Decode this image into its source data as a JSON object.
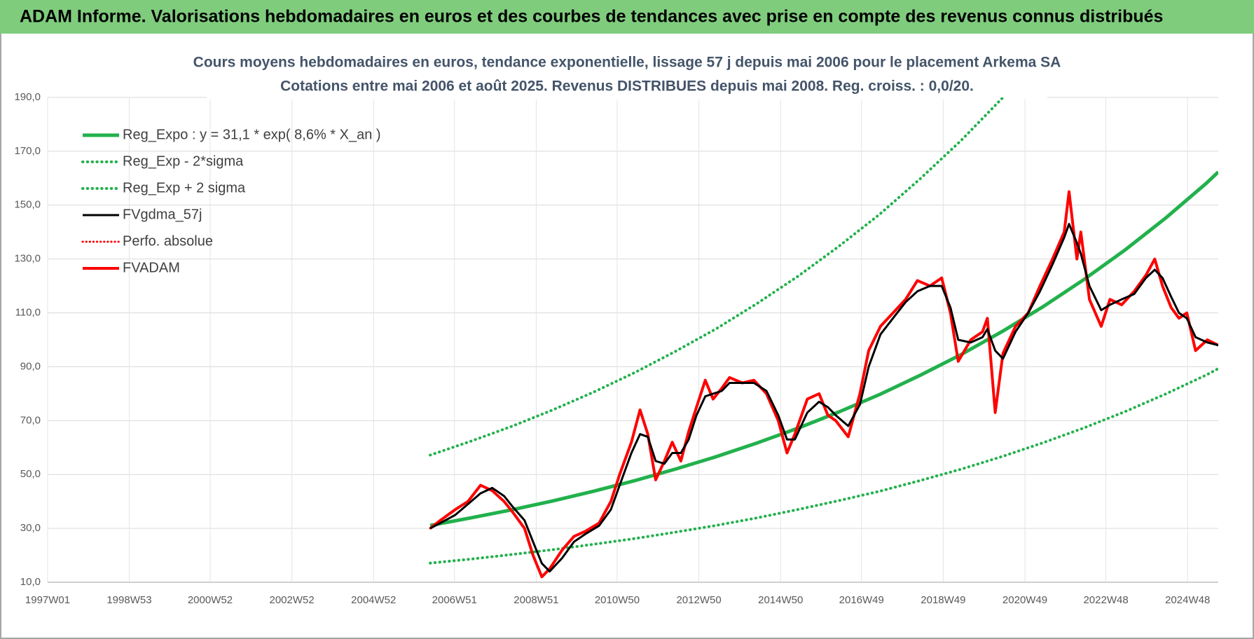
{
  "header": {
    "title": "ADAM Informe. Valorisations hebdomadaires en euros et des courbes de tendances avec prise en compte des revenus connus distribués"
  },
  "chart_data": {
    "type": "line",
    "title": "Cours moyens hebdomadaires en euros, tendance exponentielle, lissage 57 j depuis mai 2006 pour le placement Arkema SA",
    "subtitle": "Cotations entre mai 2006 et août 2025.  Revenus DISTRIBUES depuis mai 2008. Reg. croiss. : 0,0/20.",
    "grid": true,
    "legend": "upper left",
    "xlim": [
      "1997W01",
      "2025W35"
    ],
    "xticks": [
      "1997W01",
      "1998W53",
      "2000W52",
      "2002W52",
      "2004W52",
      "2006W51",
      "2008W51",
      "2010W50",
      "2012W50",
      "2014W50",
      "2016W49",
      "2018W49",
      "2020W49",
      "2022W48",
      "2024W48"
    ],
    "ylim": [
      10,
      190
    ],
    "yticks": [
      {
        "value": 10,
        "label": "10,0"
      },
      {
        "value": 30,
        "label": "30,0"
      },
      {
        "value": 50,
        "label": "50,0"
      },
      {
        "value": 70,
        "label": "70,0"
      },
      {
        "value": 90,
        "label": "90,0"
      },
      {
        "value": 110,
        "label": "110,0"
      },
      {
        "value": 130,
        "label": "130,0"
      },
      {
        "value": 150,
        "label": "150,0"
      },
      {
        "value": 170,
        "label": "170,0"
      },
      {
        "value": 190,
        "label": "190,0"
      }
    ],
    "x": [
      "2006W20",
      "2006W33",
      "2006W52",
      "2007W16",
      "2007W32",
      "2007W47",
      "2008W10",
      "2008W21",
      "2008W36",
      "2008W47",
      "2009W06",
      "2009W16",
      "2009W32",
      "2009W47",
      "2010W10",
      "2010W27",
      "2010W42",
      "2011W01",
      "2011W16",
      "2011W27",
      "2011W37",
      "2011W47",
      "2012W06",
      "2012W16",
      "2012W27",
      "2012W37",
      "2012W47",
      "2013W06",
      "2013W16",
      "2013W27",
      "2013W37",
      "2014W01",
      "2014W16",
      "2014W32",
      "2014W47",
      "2015W06",
      "2015W16",
      "2015W32",
      "2015W47",
      "2016W06",
      "2016W16",
      "2016W32",
      "2016W47",
      "2017W06",
      "2017W21",
      "2017W37",
      "2018W01",
      "2018W16",
      "2018W32",
      "2018W47",
      "2019W06",
      "2019W16",
      "2019W32",
      "2019W47",
      "2020W01",
      "2020W11",
      "2020W21",
      "2020W37",
      "2021W01",
      "2021W16",
      "2021W32",
      "2021W47",
      "2022W01",
      "2022W11",
      "2022W16",
      "2022W27",
      "2022W42",
      "2023W01",
      "2023W16",
      "2023W32",
      "2023W47",
      "2024W06",
      "2024W16",
      "2024W27",
      "2024W37",
      "2024W47",
      "2025W06",
      "2025W21",
      "2025W35"
    ],
    "series": [
      {
        "name": "Reg_Expo : y = 31,1 * exp( 8,6% *  X_an )",
        "color": "#22b14c",
        "style": "solid",
        "width": 5,
        "x": [
          "2006W20",
          "2007W20",
          "2008W20",
          "2009W20",
          "2010W20",
          "2011W20",
          "2012W20",
          "2013W20",
          "2014W20",
          "2015W20",
          "2016W20",
          "2017W20",
          "2018W20",
          "2019W20",
          "2020W20",
          "2021W20",
          "2022W20",
          "2023W20",
          "2024W20",
          "2025W20",
          "2025W35"
        ],
        "values": [
          31.1,
          33.9,
          36.9,
          40.2,
          43.8,
          47.7,
          52.0,
          56.6,
          61.7,
          67.2,
          73.2,
          79.7,
          86.9,
          94.6,
          103.1,
          112.3,
          122.4,
          133.3,
          145.2,
          158.2,
          162.3
        ]
      },
      {
        "name": "Reg_Exp - 2*sigma",
        "color": "#22b14c",
        "style": "dotted",
        "width": 4,
        "x": [
          "2006W20",
          "2007W20",
          "2008W20",
          "2009W20",
          "2010W20",
          "2011W20",
          "2012W20",
          "2013W20",
          "2014W20",
          "2015W20",
          "2016W20",
          "2017W20",
          "2018W20",
          "2019W20",
          "2020W20",
          "2021W20",
          "2022W20",
          "2023W20",
          "2024W20",
          "2025W20",
          "2025W35"
        ],
        "values": [
          17.1,
          18.6,
          20.3,
          22.1,
          24.1,
          26.2,
          28.6,
          31.1,
          33.9,
          37.0,
          40.3,
          43.8,
          47.8,
          52.0,
          56.7,
          61.8,
          67.3,
          73.3,
          79.9,
          87.0,
          89.3
        ]
      },
      {
        "name": "Reg_Exp + 2 sigma",
        "color": "#22b14c",
        "style": "dotted",
        "width": 4,
        "x": [
          "2006W20",
          "2007W20",
          "2008W20",
          "2009W20",
          "2010W20",
          "2011W20",
          "2012W20",
          "2013W20",
          "2014W20",
          "2015W20",
          "2016W20",
          "2017W20",
          "2018W20",
          "2019W20",
          "2020W20",
          "2021W20"
        ],
        "values": [
          57.2,
          62.4,
          67.9,
          74.0,
          80.6,
          87.8,
          95.7,
          104.1,
          113.5,
          123.6,
          134.7,
          146.6,
          159.9,
          174.1,
          189.7,
          206.6
        ]
      },
      {
        "name": "FVgdma_57j",
        "color": "#000000",
        "style": "solid",
        "width": 3,
        "values": [
          30,
          32,
          35,
          39,
          43,
          45,
          42,
          38,
          33,
          25,
          17,
          14,
          19,
          25,
          28,
          31,
          37,
          46,
          58,
          65,
          64,
          55,
          54,
          58,
          58,
          63,
          72,
          79,
          80,
          81,
          84,
          84,
          84,
          81,
          72,
          63,
          63,
          73,
          77,
          75,
          72,
          68,
          76,
          90,
          102,
          108,
          114,
          118,
          120,
          120,
          112,
          100,
          99,
          101,
          104,
          96,
          93,
          103,
          110,
          118,
          128,
          138,
          143,
          136,
          132,
          120,
          111,
          113,
          115,
          117,
          123,
          126,
          123,
          116,
          110,
          108,
          101,
          99,
          98
        ]
      },
      {
        "name": "Perfo. absolue",
        "color": "#ff0000",
        "style": "dotted",
        "width": 3,
        "values": [
          30,
          33,
          37,
          40,
          46,
          44,
          40,
          36,
          30,
          20,
          12,
          15,
          22,
          27,
          29,
          32,
          40,
          50,
          62,
          74,
          65,
          48,
          55,
          62,
          55,
          66,
          75,
          85,
          78,
          82,
          86,
          84,
          85,
          80,
          70,
          58,
          65,
          78,
          80,
          72,
          70,
          64,
          80,
          96,
          105,
          110,
          115,
          122,
          120,
          123,
          110,
          92,
          100,
          103,
          108,
          73,
          95,
          105,
          110,
          120,
          130,
          140,
          155,
          130,
          140,
          115,
          105,
          115,
          113,
          118,
          124,
          130,
          120,
          112,
          108,
          110,
          96,
          100,
          98
        ]
      },
      {
        "name": "FVADAM",
        "color": "#ff0000",
        "style": "solid",
        "width": 4,
        "values": [
          30,
          33,
          37,
          40,
          46,
          44,
          40,
          36,
          30,
          20,
          12,
          15,
          22,
          27,
          29,
          32,
          40,
          50,
          62,
          74,
          65,
          48,
          55,
          62,
          55,
          66,
          75,
          85,
          78,
          82,
          86,
          84,
          85,
          80,
          70,
          58,
          65,
          78,
          80,
          72,
          70,
          64,
          80,
          96,
          105,
          110,
          115,
          122,
          120,
          123,
          110,
          92,
          100,
          103,
          108,
          73,
          95,
          105,
          110,
          120,
          130,
          140,
          155,
          130,
          140,
          115,
          105,
          115,
          113,
          118,
          124,
          130,
          120,
          112,
          108,
          110,
          96,
          100,
          98
        ]
      }
    ]
  }
}
